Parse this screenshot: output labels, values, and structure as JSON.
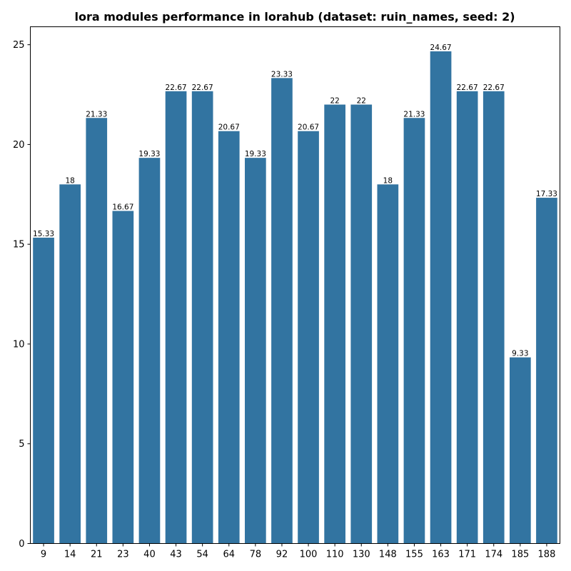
{
  "chart_data": {
    "type": "bar",
    "title": "lora modules performance in lorahub (dataset: ruin_names, seed: 2)",
    "xlabel": "",
    "ylabel": "",
    "categories": [
      "9",
      "14",
      "21",
      "23",
      "40",
      "43",
      "54",
      "64",
      "78",
      "92",
      "100",
      "110",
      "130",
      "148",
      "155",
      "163",
      "171",
      "174",
      "185",
      "188"
    ],
    "values": [
      15.33,
      18,
      21.33,
      16.67,
      19.33,
      22.67,
      22.67,
      20.67,
      19.33,
      23.33,
      20.67,
      22,
      22,
      18,
      21.33,
      24.67,
      22.67,
      22.67,
      9.33,
      17.33
    ],
    "value_labels": [
      "15.33",
      "18",
      "21.33",
      "16.67",
      "19.33",
      "22.67",
      "22.67",
      "20.67",
      "19.33",
      "23.33",
      "20.67",
      "22",
      "22",
      "18",
      "21.33",
      "24.67",
      "22.67",
      "22.67",
      "9.33",
      "17.33"
    ],
    "ylim": [
      0,
      25.9
    ],
    "yticks": [
      0,
      5,
      10,
      15,
      20,
      25
    ],
    "ytick_labels": [
      "0",
      "5",
      "10",
      "15",
      "20",
      "25"
    ],
    "grid": false,
    "legend": "none",
    "bar_color": "#3274a1"
  }
}
